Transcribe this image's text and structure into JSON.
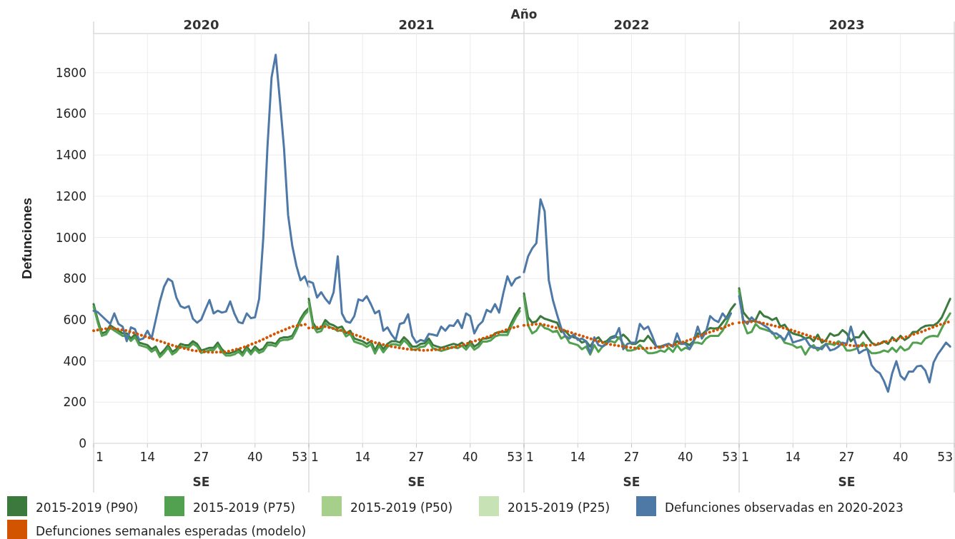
{
  "chart_data": [
    {
      "type": "line",
      "title": "2020",
      "annotations": [
        "Año"
      ],
      "xlabel": "SE",
      "ylabel": "Defunciones",
      "xlim": [
        1,
        53
      ],
      "xticks": [
        1,
        14,
        27,
        40,
        53
      ],
      "ylim": [
        0,
        1990
      ],
      "yticks": [
        0,
        200,
        400,
        600,
        800,
        1000,
        1200,
        1400,
        1600,
        1800
      ],
      "grid": true,
      "legend": "bottom",
      "marker": "none",
      "x": [
        1,
        2,
        3,
        4,
        5,
        6,
        7,
        8,
        9,
        10,
        11,
        12,
        13,
        14,
        15,
        16,
        17,
        18,
        19,
        20,
        21,
        22,
        23,
        24,
        25,
        26,
        27,
        28,
        29,
        30,
        31,
        32,
        33,
        34,
        35,
        36,
        37,
        38,
        39,
        40,
        41,
        42,
        43,
        44,
        45,
        46,
        47,
        48,
        49,
        50,
        51,
        52,
        53
      ],
      "series": [
        {
          "name": "2015-2019 (P90)",
          "color": "#3b7a3c",
          "values": [
            676,
            599,
            534,
            541,
            573,
            560,
            547,
            534,
            534,
            509,
            528,
            489,
            483,
            477,
            457,
            470,
            431,
            451,
            477,
            444,
            457,
            483,
            477,
            477,
            496,
            483,
            451,
            457,
            464,
            464,
            489,
            457,
            438,
            438,
            444,
            457,
            438,
            470,
            444,
            470,
            451,
            460,
            489,
            489,
            483,
            509,
            515,
            515,
            522,
            560,
            605,
            637,
            657
          ]
        },
        {
          "name": "2015-2019 (P75)",
          "color": "#52a150",
          "values": [
            664,
            587,
            522,
            529,
            561,
            548,
            535,
            522,
            522,
            497,
            516,
            477,
            471,
            465,
            445,
            458,
            419,
            439,
            465,
            432,
            445,
            471,
            465,
            465,
            484,
            471,
            439,
            445,
            452,
            452,
            477,
            445,
            426,
            426,
            432,
            445,
            426,
            458,
            432,
            458,
            439,
            448,
            477,
            477,
            471,
            497,
            503,
            503,
            510,
            548,
            593,
            625,
            645
          ]
        },
        {
          "name": "2015-2019 (P50)",
          "color": "#a5cf8b",
          "values": [
            null,
            null,
            null,
            null,
            null,
            null,
            null,
            null,
            null,
            null,
            null,
            null,
            null,
            null,
            null,
            null,
            null,
            null,
            null,
            null,
            null,
            null,
            null,
            null,
            null,
            null,
            null,
            null,
            null,
            null,
            null,
            null,
            null,
            null,
            null,
            null,
            null,
            null,
            null,
            null,
            null,
            null,
            null,
            null,
            null,
            null,
            null,
            null,
            null,
            null,
            null,
            null,
            null
          ]
        },
        {
          "name": "2015-2019 (P25)",
          "color": "#c7e3b6",
          "values": [
            null,
            null,
            null,
            null,
            null,
            null,
            null,
            null,
            null,
            null,
            null,
            null,
            null,
            null,
            null,
            null,
            null,
            null,
            null,
            null,
            null,
            null,
            null,
            null,
            null,
            null,
            null,
            null,
            null,
            null,
            null,
            null,
            null,
            null,
            null,
            null,
            null,
            null,
            null,
            null,
            null,
            null,
            null,
            null,
            null,
            null,
            null,
            null,
            null,
            null,
            null,
            null,
            null
          ]
        },
        {
          "name": "Defunciones observadas en 2020-2023",
          "color": "#4e79a7",
          "values": [
            644,
            637,
            618,
            599,
            580,
            631,
            580,
            567,
            496,
            563,
            554,
            502,
            509,
            547,
            509,
            599,
            689,
            760,
            799,
            786,
            708,
            666,
            657,
            666,
            605,
            586,
            601,
            650,
            696,
            631,
            644,
            635,
            640,
            689,
            631,
            589,
            583,
            631,
            608,
            612,
            702,
            998,
            1436,
            1777,
            1887,
            1668,
            1436,
            1108,
            960,
            863,
            792,
            811,
            760
          ]
        },
        {
          "name": "Defunciones semanales esperadas (modelo)",
          "color": "#d35400",
          "line_style": "dotted",
          "x": [
            1,
            5,
            9,
            13,
            17,
            21,
            25,
            29,
            33,
            37,
            41,
            45,
            49,
            53
          ],
          "values": [
            547,
            560,
            547,
            522,
            496,
            470,
            451,
            442,
            444,
            464,
            496,
            534,
            567,
            580
          ]
        }
      ]
    },
    {
      "type": "line",
      "title": "2021",
      "xlabel": "SE",
      "xlim": [
        1,
        53
      ],
      "xticks": [
        1,
        14,
        27,
        40,
        53
      ],
      "ylim": [
        0,
        1990
      ],
      "yticks": [
        0,
        200,
        400,
        600,
        800,
        1000,
        1200,
        1400,
        1600,
        1800
      ],
      "grid": true,
      "tick_labels": "x",
      "marker": "none",
      "x": [
        1,
        2,
        3,
        4,
        5,
        6,
        7,
        8,
        9,
        10,
        11,
        12,
        13,
        14,
        15,
        16,
        17,
        18,
        19,
        20,
        21,
        22,
        23,
        24,
        25,
        26,
        27,
        28,
        29,
        30,
        31,
        32,
        33,
        34,
        35,
        36,
        37,
        38,
        39,
        40,
        41,
        42,
        43,
        44,
        45,
        46,
        47,
        48,
        49,
        50,
        51,
        52
      ],
      "series": [
        {
          "color": "#3b7a3c",
          "values": [
            702,
            586,
            554,
            560,
            599,
            580,
            573,
            560,
            567,
            534,
            547,
            509,
            502,
            496,
            483,
            496,
            451,
            489,
            457,
            483,
            496,
            496,
            489,
            515,
            496,
            470,
            470,
            483,
            486,
            509,
            477,
            470,
            464,
            470,
            477,
            483,
            477,
            489,
            470,
            496,
            470,
            483,
            509,
            509,
            515,
            534,
            541,
            541,
            541,
            586,
            625,
            657
          ]
        },
        {
          "color": "#52a150",
          "values": [
            687,
            571,
            539,
            545,
            584,
            565,
            558,
            545,
            552,
            519,
            532,
            494,
            487,
            481,
            468,
            481,
            436,
            474,
            442,
            468,
            481,
            481,
            474,
            500,
            481,
            455,
            455,
            468,
            471,
            494,
            462,
            455,
            449,
            455,
            462,
            468,
            462,
            474,
            455,
            481,
            455,
            468,
            494,
            494,
            500,
            519,
            526,
            526,
            526,
            571,
            610,
            642
          ]
        },
        {
          "color": "#4e79a7",
          "values": [
            786,
            779,
            708,
            734,
            702,
            679,
            734,
            908,
            631,
            592,
            586,
            618,
            699,
            692,
            715,
            676,
            631,
            644,
            547,
            563,
            528,
            502,
            580,
            586,
            627,
            522,
            489,
            502,
            496,
            531,
            528,
            522,
            567,
            547,
            573,
            570,
            599,
            560,
            631,
            618,
            534,
            573,
            592,
            648,
            637,
            676,
            635,
            728,
            811,
            766,
            799,
            808
          ]
        },
        {
          "color": "#d35400",
          "line_style": "dotted",
          "x": [
            1,
            5,
            9,
            13,
            17,
            21,
            25,
            29,
            33,
            37,
            41,
            45,
            49,
            52
          ],
          "values": [
            560,
            567,
            547,
            522,
            489,
            470,
            457,
            451,
            457,
            470,
            496,
            522,
            554,
            570
          ]
        }
      ]
    },
    {
      "type": "line",
      "title": "2022",
      "xlabel": "SE",
      "xlim": [
        1,
        53
      ],
      "xticks": [
        1,
        14,
        27,
        40,
        53
      ],
      "ylim": [
        0,
        1990
      ],
      "yticks": [
        0,
        200,
        400,
        600,
        800,
        1000,
        1200,
        1400,
        1600,
        1800
      ],
      "grid": true,
      "tick_labels": "x",
      "marker": "none",
      "x": [
        1,
        2,
        3,
        4,
        5,
        6,
        7,
        8,
        9,
        10,
        11,
        12,
        13,
        14,
        15,
        16,
        17,
        18,
        19,
        20,
        21,
        22,
        23,
        24,
        25,
        26,
        27,
        28,
        29,
        30,
        31,
        32,
        33,
        34,
        35,
        36,
        37,
        38,
        39,
        40,
        41,
        42,
        43,
        44,
        45,
        46,
        47,
        48,
        49,
        50,
        51,
        52
      ],
      "series": [
        {
          "color": "#3b7a3c",
          "values": [
            728,
            612,
            586,
            592,
            618,
            605,
            599,
            592,
            586,
            541,
            547,
            522,
            515,
            509,
            489,
            496,
            470,
            502,
            515,
            489,
            496,
            515,
            522,
            509,
            528,
            509,
            483,
            483,
            499,
            496,
            522,
            496,
            470,
            470,
            477,
            483,
            470,
            496,
            483,
            489,
            477,
            496,
            534,
            528,
            547,
            560,
            557,
            560,
            586,
            612,
            650,
            676
          ]
        },
        {
          "color": "#52a150",
          "values": [
            715,
            573,
            534,
            547,
            580,
            560,
            554,
            541,
            547,
            509,
            522,
            489,
            483,
            477,
            457,
            470,
            431,
            477,
            444,
            470,
            489,
            496,
            489,
            515,
            483,
            451,
            451,
            457,
            477,
            457,
            438,
            438,
            442,
            451,
            444,
            464,
            444,
            477,
            451,
            464,
            457,
            489,
            489,
            483,
            509,
            522,
            522,
            522,
            547,
            586,
            631,
            null
          ]
        },
        {
          "color": "#4e79a7",
          "values": [
            831,
            908,
            947,
            972,
            1185,
            1127,
            792,
            695,
            625,
            560,
            522,
            509,
            528,
            502,
            509,
            496,
            438,
            515,
            477,
            470,
            483,
            509,
            515,
            560,
            457,
            483,
            489,
            489,
            580,
            554,
            567,
            522,
            470,
            464,
            477,
            483,
            470,
            534,
            483,
            483,
            457,
            496,
            567,
            509,
            541,
            618,
            599,
            589,
            631,
            605,
            631,
            null
          ]
        },
        {
          "color": "#d35400",
          "line_style": "dotted",
          "x": [
            1,
            5,
            9,
            13,
            17,
            21,
            25,
            29,
            33,
            37,
            41,
            45,
            49,
            52
          ],
          "values": [
            573,
            580,
            560,
            534,
            509,
            483,
            470,
            460,
            464,
            477,
            502,
            534,
            560,
            586
          ]
        }
      ]
    },
    {
      "type": "line",
      "title": "2023",
      "xlabel": "SE",
      "xlim": [
        1,
        53
      ],
      "xticks": [
        1,
        14,
        27,
        40,
        53
      ],
      "ylim": [
        0,
        1990
      ],
      "yticks": [
        0,
        200,
        400,
        600,
        800,
        1000,
        1200,
        1400,
        1600,
        1800
      ],
      "grid": true,
      "tick_labels": "x",
      "marker": "none",
      "x": [
        1,
        2,
        3,
        4,
        5,
        6,
        7,
        8,
        9,
        10,
        11,
        12,
        13,
        14,
        15,
        16,
        17,
        18,
        19,
        20,
        21,
        22,
        23,
        24,
        25,
        26,
        27,
        28,
        29,
        30,
        31,
        32,
        33,
        34,
        35,
        36,
        37,
        38,
        39,
        40,
        41,
        42,
        43,
        44,
        45,
        46,
        47,
        48,
        49,
        50,
        51,
        52
      ],
      "series": [
        {
          "color": "#3b7a3c",
          "values": [
            753,
            637,
            612,
            592,
            599,
            641,
            618,
            612,
            599,
            609,
            567,
            576,
            547,
            534,
            528,
            522,
            509,
            515,
            496,
            528,
            489,
            502,
            534,
            522,
            528,
            550,
            534,
            496,
            515,
            515,
            544,
            515,
            489,
            477,
            483,
            496,
            483,
            515,
            496,
            522,
            502,
            515,
            541,
            541,
            560,
            570,
            573,
            573,
            586,
            612,
            657,
            702
          ]
        },
        {
          "color": "#52a150",
          "values": [
            741,
            586,
            534,
            541,
            580,
            560,
            554,
            547,
            541,
            509,
            522,
            489,
            483,
            477,
            464,
            470,
            431,
            464,
            477,
            451,
            470,
            483,
            483,
            477,
            496,
            483,
            451,
            451,
            457,
            470,
            489,
            457,
            438,
            438,
            442,
            451,
            444,
            464,
            444,
            470,
            451,
            460,
            489,
            489,
            483,
            509,
            519,
            522,
            519,
            560,
            599,
            631
          ]
        },
        {
          "color": "#4e79a7",
          "values": [
            715,
            599,
            580,
            612,
            592,
            586,
            573,
            560,
            534,
            534,
            519,
            502,
            541,
            489,
            496,
            502,
            509,
            477,
            464,
            464,
            457,
            483,
            451,
            457,
            470,
            489,
            483,
            567,
            496,
            438,
            451,
            457,
            380,
            354,
            341,
            303,
            251,
            341,
            399,
            328,
            309,
            348,
            348,
            374,
            377,
            354,
            296,
            393,
            432,
            460,
            489,
            470
          ]
        },
        {
          "color": "#d35400",
          "line_style": "dotted",
          "x": [
            1,
            5,
            9,
            13,
            17,
            21,
            25,
            29,
            33,
            37,
            41,
            45,
            49,
            52
          ],
          "values": [
            586,
            592,
            573,
            554,
            528,
            502,
            483,
            473,
            477,
            496,
            515,
            541,
            573,
            592
          ]
        }
      ]
    }
  ]
}
